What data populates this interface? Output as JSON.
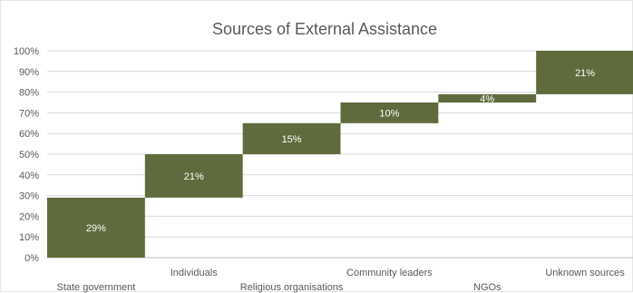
{
  "chart_data": {
    "type": "bar",
    "subtype": "waterfall",
    "title": "Sources of External Assistance",
    "xlabel": "",
    "ylabel": "",
    "ylim": [
      0,
      100
    ],
    "yticks": [
      "0%",
      "10%",
      "20%",
      "30%",
      "40%",
      "50%",
      "60%",
      "70%",
      "80%",
      "90%",
      "100%"
    ],
    "categories": [
      "State government",
      "Individuals",
      "Religious organisations",
      "Community leaders",
      "NGOs",
      "Unknown sources"
    ],
    "values": [
      29,
      21,
      15,
      10,
      4,
      21
    ],
    "labels": [
      "29%",
      "21%",
      "15%",
      "10%",
      "4%",
      "21%"
    ],
    "bar_color": "#5f6b3c",
    "gridlines": true,
    "legend": "none"
  }
}
